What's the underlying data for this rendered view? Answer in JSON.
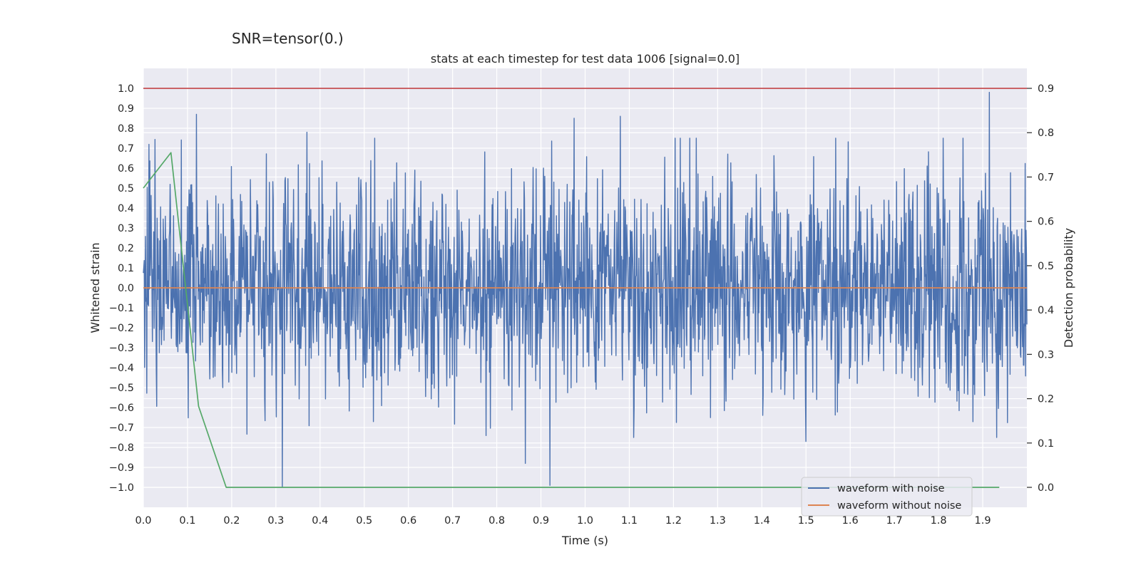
{
  "suptitle": "SNR=tensor(0.)",
  "chart_data": {
    "type": "line",
    "title": "stats at each timestep for test data 1006 [signal=0.0]",
    "xlabel": "Time (s)",
    "ylabel": "Whitened strain",
    "y2label": "Detection probability",
    "xlim": [
      0.0,
      2.0
    ],
    "ylim": [
      -1.1,
      1.1
    ],
    "y2lim": [
      -0.045,
      0.945
    ],
    "xticks": [
      0.0,
      0.1,
      0.2,
      0.3,
      0.4,
      0.5,
      0.6,
      0.7,
      0.8,
      0.9,
      1.0,
      1.1,
      1.2,
      1.3,
      1.4,
      1.5,
      1.6,
      1.7,
      1.8,
      1.9
    ],
    "xtick_labels": [
      "0.0",
      "0.1",
      "0.2",
      "0.3",
      "0.4",
      "0.5",
      "0.6",
      "0.7",
      "0.8",
      "0.9",
      "1.0",
      "1.1",
      "1.2",
      "1.3",
      "1.4",
      "1.5",
      "1.6",
      "1.7",
      "1.8",
      "1.9"
    ],
    "yticks": [
      1.0,
      0.9,
      0.8,
      0.7,
      0.6,
      0.5,
      0.4,
      0.3,
      0.2,
      0.1,
      0.0,
      -0.1,
      -0.2,
      -0.3,
      -0.4,
      -0.5,
      -0.6,
      -0.7,
      -0.8,
      -0.9,
      -1.0
    ],
    "ytick_labels": [
      "1.0",
      "0.9",
      "0.8",
      "0.7",
      "0.6",
      "0.5",
      "0.4",
      "0.3",
      "0.2",
      "0.1",
      "0.0",
      "−0.1",
      "−0.2",
      "−0.3",
      "−0.4",
      "−0.5",
      "−0.6",
      "−0.7",
      "−0.8",
      "−0.9",
      "−1.0"
    ],
    "y2ticks": [
      0.9,
      0.8,
      0.7,
      0.6,
      0.5,
      0.4,
      0.3,
      0.2,
      0.1,
      0.0
    ],
    "y2tick_labels": [
      "0.9",
      "0.8",
      "0.7",
      "0.6",
      "0.5",
      "0.4",
      "0.3",
      "0.2",
      "0.1",
      "0.0"
    ],
    "series": [
      {
        "name": "waveform with noise",
        "axis": "left",
        "color": "#4c72b0",
        "kind": "noise",
        "samples": 2048,
        "x_range": [
          0.0,
          2.0
        ],
        "amplitude_std": 0.28,
        "y_extremes": [
          {
            "x": 0.12,
            "y": 0.87
          },
          {
            "x": 0.315,
            "y": -1.0
          },
          {
            "x": 0.37,
            "y": 0.78
          },
          {
            "x": 0.865,
            "y": -0.88
          },
          {
            "x": 0.92,
            "y": -0.99
          },
          {
            "x": 0.975,
            "y": 0.85
          },
          {
            "x": 1.08,
            "y": 0.86
          },
          {
            "x": 1.5,
            "y": -0.77
          },
          {
            "x": 1.915,
            "y": 0.98
          }
        ]
      },
      {
        "name": "waveform without noise",
        "axis": "left",
        "color": "#dd8452",
        "x": [
          0.0,
          2.0
        ],
        "y": [
          0.0,
          0.0
        ]
      },
      {
        "name": "detection probability",
        "axis": "right",
        "color": "#55a868",
        "x": [
          0.0,
          0.0625,
          0.125,
          0.1875,
          0.25,
          0.5,
          1.0,
          1.5,
          1.9375
        ],
        "y": [
          0.675,
          0.755,
          0.183,
          0.0,
          0.0,
          0.0,
          0.0,
          0.0,
          0.0
        ]
      },
      {
        "name": "threshold",
        "axis": "right",
        "color": "#c44e52",
        "x": [
          0.0,
          2.0
        ],
        "y": [
          0.9,
          0.9
        ]
      }
    ],
    "legend": {
      "position": "lower-right",
      "entries": [
        {
          "label": "waveform with noise",
          "color": "#4c72b0"
        },
        {
          "label": "waveform without noise",
          "color": "#dd8452"
        }
      ]
    },
    "grid": true,
    "background": "#eaeaf2"
  }
}
